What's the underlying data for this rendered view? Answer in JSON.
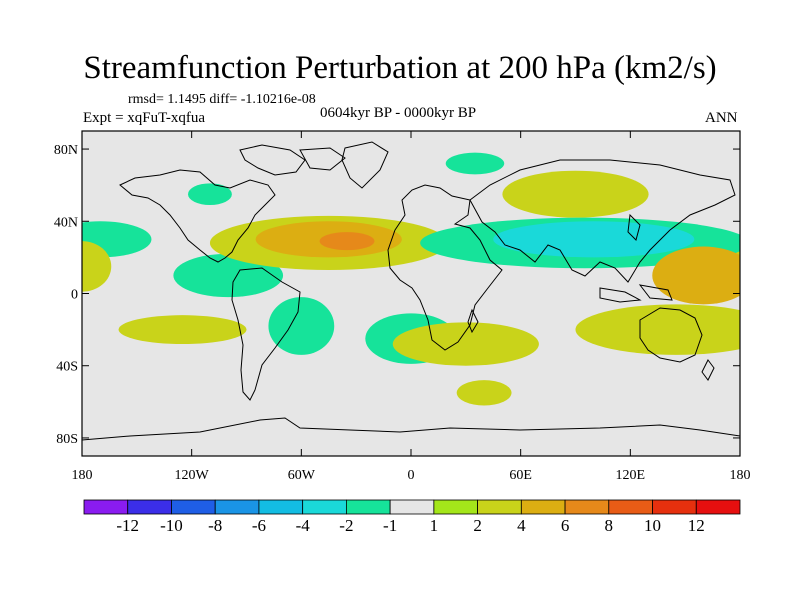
{
  "chart_data": {
    "type": "contour-map",
    "title": "Streamfunction Perturbation at 200 hPa (km2/s)",
    "stats": "rmsd= 1.1495 diff= -1.10216e-08",
    "period": "0604kyr BP - 0000kyr BP",
    "experiment": "Expt = xqFuT-xqfua",
    "season": "ANN",
    "x_ticks": [
      "180",
      "120W",
      "60W",
      "0",
      "60E",
      "120E",
      "180"
    ],
    "y_ticks": [
      "80N",
      "40N",
      "0",
      "40S",
      "80S"
    ],
    "lon_range": [
      -180,
      180
    ],
    "lat_range": [
      -90,
      90
    ],
    "colorbar": {
      "levels": [
        "-12",
        "-10",
        "-8",
        "-6",
        "-4",
        "-2",
        "-1",
        "1",
        "2",
        "4",
        "6",
        "8",
        "10",
        "12"
      ],
      "colors": [
        "#8a1cf0",
        "#3b2ee8",
        "#1f5ee6",
        "#1a94e6",
        "#13bde3",
        "#1ad9d9",
        "#16e39a",
        "#e6e6e6",
        "#a4e61a",
        "#c9d31a",
        "#dcae12",
        "#e6891a",
        "#e85c16",
        "#e6300e",
        "#e60f0f"
      ]
    },
    "anomaly_regions": [
      {
        "lon": -170,
        "lat": 30,
        "rx": 28,
        "ry": 10,
        "value": -2
      },
      {
        "lon": -180,
        "lat": 15,
        "rx": 16,
        "ry": 14,
        "value": 2
      },
      {
        "lon": -100,
        "lat": 10,
        "rx": 30,
        "ry": 12,
        "value": -2
      },
      {
        "lon": -125,
        "lat": -20,
        "rx": 35,
        "ry": 8,
        "value": 2
      },
      {
        "lon": -110,
        "lat": 55,
        "rx": 12,
        "ry": 6,
        "value": -2
      },
      {
        "lon": -60,
        "lat": -18,
        "rx": 18,
        "ry": 16,
        "value": -2
      },
      {
        "lon": -45,
        "lat": 28,
        "rx": 65,
        "ry": 15,
        "value": 2
      },
      {
        "lon": -45,
        "lat": 30,
        "rx": 40,
        "ry": 10,
        "value": 4
      },
      {
        "lon": -35,
        "lat": 29,
        "rx": 15,
        "ry": 5,
        "value": 6
      },
      {
        "lon": 35,
        "lat": 72,
        "rx": 16,
        "ry": 6,
        "value": -2
      },
      {
        "lon": 90,
        "lat": 55,
        "rx": 40,
        "ry": 13,
        "value": 2
      },
      {
        "lon": 95,
        "lat": 28,
        "rx": 90,
        "ry": 14,
        "value": -2
      },
      {
        "lon": 100,
        "lat": 30,
        "rx": 55,
        "ry": 10,
        "value": -4
      },
      {
        "lon": 0,
        "lat": -25,
        "rx": 25,
        "ry": 14,
        "value": -2
      },
      {
        "lon": 30,
        "lat": -28,
        "rx": 40,
        "ry": 12,
        "value": 2
      },
      {
        "lon": 145,
        "lat": -20,
        "rx": 55,
        "ry": 14,
        "value": 2
      },
      {
        "lon": 160,
        "lat": 10,
        "rx": 28,
        "ry": 16,
        "value": 4
      },
      {
        "lon": 40,
        "lat": -55,
        "rx": 15,
        "ry": 7,
        "value": 2
      }
    ]
  }
}
